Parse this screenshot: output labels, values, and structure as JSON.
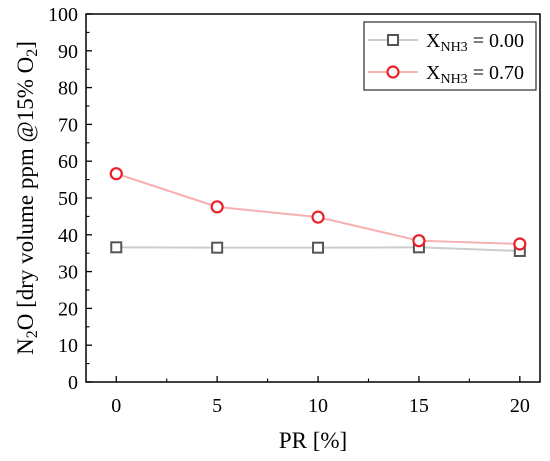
{
  "chart_data": {
    "type": "line",
    "title": "",
    "xlabel": "PR [%]",
    "ylabel": {
      "p1": "N",
      "s1": "2",
      "p2": "O [dry volume ppm @15% O",
      "s2": "2",
      "p3": "]"
    },
    "x": [
      0,
      5,
      10,
      15,
      20
    ],
    "xlim": [
      -1.5,
      21
    ],
    "ylim": [
      0,
      100
    ],
    "xticks": [
      "0",
      "5",
      "10",
      "15",
      "20"
    ],
    "yticks": [
      "0",
      "10",
      "20",
      "30",
      "40",
      "50",
      "60",
      "70",
      "80",
      "90",
      "100"
    ],
    "legend_position": "top-right",
    "grid": false,
    "series": [
      {
        "name": "X",
        "name_sub": "NH3",
        "name_suffix": " = 0.00",
        "values": [
          36.6,
          36.5,
          36.5,
          36.6,
          35.6
        ],
        "marker": "square",
        "marker_color": "#555555",
        "line_color": "#cccccc"
      },
      {
        "name": "X",
        "name_sub": "NH3",
        "name_suffix": " = 0.70",
        "values": [
          56.6,
          47.6,
          44.8,
          38.4,
          37.5
        ],
        "marker": "circle",
        "marker_color": "#e8222a",
        "line_color": "#f6b0b0"
      }
    ]
  }
}
